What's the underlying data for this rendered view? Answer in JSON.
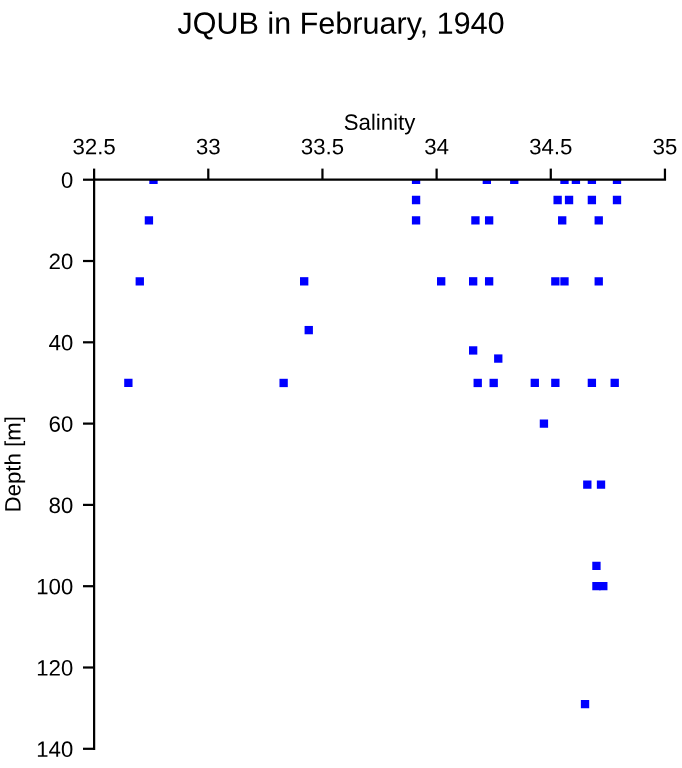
{
  "chart_data": {
    "type": "scatter",
    "title": "JQUB in February, 1940",
    "xlabel": "Salinity",
    "ylabel": "Depth [m]",
    "xlim": [
      32.5,
      35
    ],
    "xticks": [
      32.5,
      33,
      33.5,
      34,
      34.5,
      35
    ],
    "ylim": [
      140,
      0
    ],
    "yticks": [
      0,
      20,
      40,
      60,
      80,
      100,
      120,
      140
    ],
    "grid": false,
    "marker": "square",
    "legend": false,
    "series": [
      {
        "color": "#0000ff",
        "x": [
          32.76,
          33.91,
          34.22,
          34.34,
          34.56,
          34.61,
          34.68,
          34.79,
          33.91,
          34.53,
          34.58,
          34.68,
          34.79,
          32.74,
          33.91,
          34.17,
          34.23,
          34.54,
          34.55,
          34.7,
          34.71,
          32.7,
          33.42,
          34.02,
          34.16,
          34.23,
          34.52,
          34.56,
          34.7,
          34.71,
          33.44,
          34.16,
          34.27,
          32.65,
          33.33,
          34.18,
          34.25,
          34.43,
          34.52,
          34.68,
          34.78,
          34.47,
          34.66,
          34.72,
          34.7,
          34.7,
          34.73,
          34.65
        ],
        "values": [
          0,
          0,
          0,
          0,
          0,
          0,
          0,
          0,
          5,
          5,
          5,
          5,
          5,
          10,
          10,
          10,
          10,
          null,
          10,
          null,
          10,
          25,
          25,
          25,
          25,
          25,
          25,
          25,
          null,
          25,
          37,
          42,
          44,
          50,
          50,
          50,
          50,
          50,
          50,
          50,
          50,
          60,
          75,
          75,
          95,
          100,
          100,
          129
        ]
      }
    ]
  }
}
